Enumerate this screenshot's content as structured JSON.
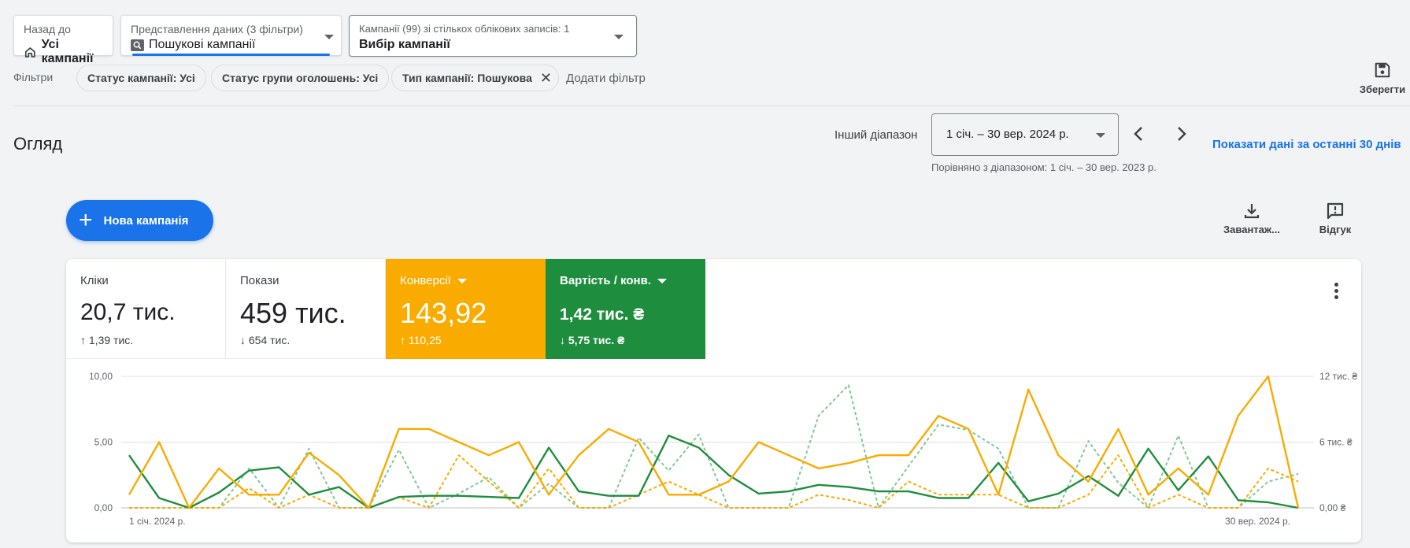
{
  "header": {
    "back": {
      "caption": "Назад до",
      "value": "Усі кампанії"
    },
    "view": {
      "caption": "Представлення даних (3 фільтри)",
      "value": "Пошукові кампанії"
    },
    "campaigns": {
      "caption": "Кампанії (99) зі стількох облікових записів: 1",
      "value": "Вибір кампанії"
    }
  },
  "filters": {
    "label": "Фільтри",
    "chips": [
      "Статус кампанії: Усі",
      "Статус групи оголошень: Усі",
      "Тип кампанії: Пошукова"
    ],
    "add_label": "Додати фільтр",
    "save_label": "Зберегти"
  },
  "overview": {
    "title": "Огляд",
    "range_label": "Інший діапазон",
    "range_value": "1 січ. – 30 вер. 2024 р.",
    "compare_text": "Порівняно з діапазоном: 1 січ. – 30 вер. 2023 р.",
    "last30_link": "Показати дані за останні 30 днів"
  },
  "actions": {
    "new_campaign": "Нова кампанія",
    "download": "Завантаж...",
    "feedback": "Відгук"
  },
  "metrics": [
    {
      "label": "Кліки",
      "value": "20,7 тис.",
      "delta": "1,39 тис.",
      "direction": "up"
    },
    {
      "label": "Покази",
      "value": "459 тис.",
      "delta": "654 тис.",
      "direction": "down"
    },
    {
      "label": "Конверсії",
      "value": "143,92",
      "delta": "110,25",
      "direction": "up",
      "color": "#f9ab00"
    },
    {
      "label": "Вартість / конв.",
      "value": "1,42 тис. ₴",
      "delta": "5,75 тис. ₴",
      "direction": "down",
      "color": "#1e8e3e"
    }
  ],
  "chart_data": {
    "type": "line",
    "x_start_label": "1 січ. 2024 р.",
    "x_end_label": "30 вер. 2024 р.",
    "y_left_ticks": [
      "0,00",
      "5,00",
      "10,00"
    ],
    "y_left_lim": [
      0,
      10
    ],
    "y_right_ticks": [
      "0,00 ₴",
      "6 тис. ₴",
      "12 тис. ₴"
    ],
    "y_right_lim": [
      0,
      12000
    ],
    "grid": true,
    "series": [
      {
        "color": "#f9ab00",
        "style": "solid",
        "axis": "left",
        "values": [
          1,
          5,
          0,
          3,
          1,
          1,
          4.2,
          2.5,
          0,
          6,
          6,
          5,
          4,
          5,
          1,
          4,
          6,
          5,
          1,
          1,
          2,
          5,
          4,
          3,
          3.4,
          4,
          4,
          7,
          6,
          1,
          9,
          4,
          2,
          6,
          1,
          3,
          1,
          7,
          10,
          0
        ]
      },
      {
        "color": "#1e8e3e",
        "style": "solid",
        "axis": "right",
        "values": [
          4800,
          900,
          0,
          1400,
          3400,
          3700,
          1200,
          1900,
          0,
          1000,
          1100,
          1100,
          1000,
          900,
          5500,
          1500,
          1100,
          1100,
          6600,
          5500,
          3000,
          1300,
          1500,
          2100,
          1900,
          1500,
          1500,
          900,
          900,
          4100,
          600,
          1300,
          2900,
          1100,
          5400,
          1600,
          4700,
          700,
          500,
          0
        ]
      },
      {
        "color": "#f9ab00",
        "style": "dashed",
        "axis": "left",
        "values": [
          0,
          0,
          0,
          0,
          1.5,
          0,
          1,
          0,
          0,
          0.8,
          0,
          4,
          2,
          0,
          3,
          0,
          0,
          1,
          2,
          1,
          0,
          0,
          0,
          1,
          0.6,
          0,
          2,
          1,
          1,
          1,
          0,
          0,
          1,
          4,
          0,
          1,
          0,
          0,
          3,
          2
        ]
      },
      {
        "color": "#81c995",
        "style": "dashed",
        "axis": "right",
        "values": [
          0,
          0,
          0,
          0,
          3600,
          0,
          5400,
          0,
          0,
          5300,
          0,
          1300,
          2800,
          0,
          2200,
          0,
          0,
          6400,
          3400,
          6700,
          0,
          0,
          0,
          8400,
          11200,
          0,
          3800,
          7600,
          7100,
          5400,
          0,
          0,
          6100,
          2300,
          0,
          6600,
          0,
          0,
          2400,
          3100
        ]
      }
    ]
  }
}
